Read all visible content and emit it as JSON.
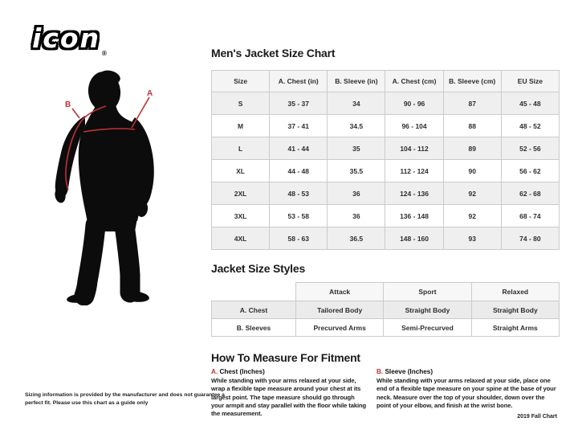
{
  "brand": {
    "logo_text": "icon",
    "registered_mark": "®"
  },
  "figure": {
    "label_a": "A",
    "label_b": "B",
    "silhouette_color": "#0c0c0c",
    "measure_line_color": "#bf3138"
  },
  "size_chart": {
    "title": "Men's Jacket Size Chart",
    "columns": [
      "Size",
      "A. Chest (in)",
      "B. Sleeve (in)",
      "A. Chest (cm)",
      "B. Sleeve (cm)",
      "EU Size"
    ],
    "rows": [
      [
        "S",
        "35 - 37",
        "34",
        "90 - 96",
        "87",
        "45 - 48"
      ],
      [
        "M",
        "37 - 41",
        "34.5",
        "96 - 104",
        "88",
        "48 - 52"
      ],
      [
        "L",
        "41 - 44",
        "35",
        "104 - 112",
        "89",
        "52 - 56"
      ],
      [
        "XL",
        "44 - 48",
        "35.5",
        "112 - 124",
        "90",
        "56 - 62"
      ],
      [
        "2XL",
        "48 - 53",
        "36",
        "124 - 136",
        "92",
        "62 - 68"
      ],
      [
        "3XL",
        "53 - 58",
        "36",
        "136 - 148",
        "92",
        "68 - 74"
      ],
      [
        "4XL",
        "58 - 63",
        "36.5",
        "148 - 160",
        "93",
        "74 - 80"
      ]
    ]
  },
  "size_styles": {
    "title": "Jacket Size Styles",
    "columns": [
      "",
      "Attack",
      "Sport",
      "Relaxed"
    ],
    "rows": [
      [
        "A. Chest",
        "Tailored Body",
        "Straight Body",
        "Straight Body"
      ],
      [
        "B. Sleeves",
        "Precurved Arms",
        "Semi-Precurved",
        "Straight Arms"
      ]
    ]
  },
  "how_to_measure": {
    "title": "How To Measure For Fitment",
    "sections": [
      {
        "letter": "A.",
        "label": "Chest (Inches)",
        "text": "While standing with your arms relaxed at your side, wrap a flexible tape measure around your chest at its largest point. The tape measure should go through your armpit and stay parallel with the floor while taking the measurement."
      },
      {
        "letter": "B.",
        "label": "Sleeve (Inches)",
        "text": "While standing with your arms relaxed at your side, place one end of a flexible tape measure on your spine at the base of your neck. Measure over the top of your shoulder, down over the point of your elbow, and finish at the wrist bone."
      }
    ]
  },
  "footer": {
    "disclaimer": "Sizing information is provided by the manufacturer and does not guarantee a perfect fit. Please use this chart as a guide only",
    "version": "2019 Fall Chart"
  },
  "colors": {
    "accent_red": "#bf3138",
    "table_stripe": "#efefef",
    "table_border": "#cbcbcb"
  }
}
